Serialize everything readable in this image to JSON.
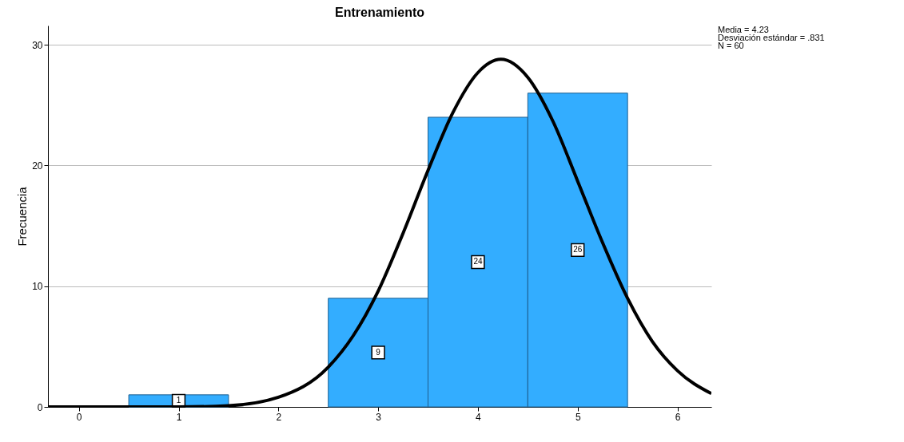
{
  "chart_data": {
    "type": "histogram",
    "title": "Entrenamiento",
    "ylabel": "Frecuencia",
    "bins": [
      0.5,
      1.5,
      2.5,
      3.5,
      4.5,
      5.5
    ],
    "values": [
      1,
      0,
      9,
      24,
      26
    ],
    "color": "#33adff",
    "value_labels": [
      "1",
      null,
      "9",
      "24",
      "26"
    ],
    "series": [
      {
        "type": "line",
        "color": "#000000",
        "x": [
          -0.31,
          0,
          0.5,
          1,
          1.5,
          2,
          2.5,
          2.75,
          3,
          3.25,
          3.5,
          3.75,
          4,
          4.23,
          4.5,
          4.75,
          5,
          5.25,
          5.5,
          5.75,
          6,
          6.34
        ],
        "values": [
          0,
          0,
          0,
          0,
          0.1,
          0.8,
          3.3,
          5.9,
          9.6,
          14.4,
          19.6,
          24.4,
          27.7,
          28.8,
          27.3,
          23.7,
          18.7,
          13.6,
          9.0,
          5.4,
          3.0,
          1.1
        ]
      }
    ],
    "annotations": [
      "Media = 4.23",
      "Desviación estándar = .831",
      "N = 60"
    ],
    "xlim": [
      -0.31,
      6.34
    ],
    "ylim": [
      0,
      31.6
    ],
    "xticks": [
      0,
      1,
      2,
      3,
      4,
      5,
      6
    ],
    "yticks": [
      0,
      10,
      20,
      30
    ],
    "grid": "y"
  }
}
